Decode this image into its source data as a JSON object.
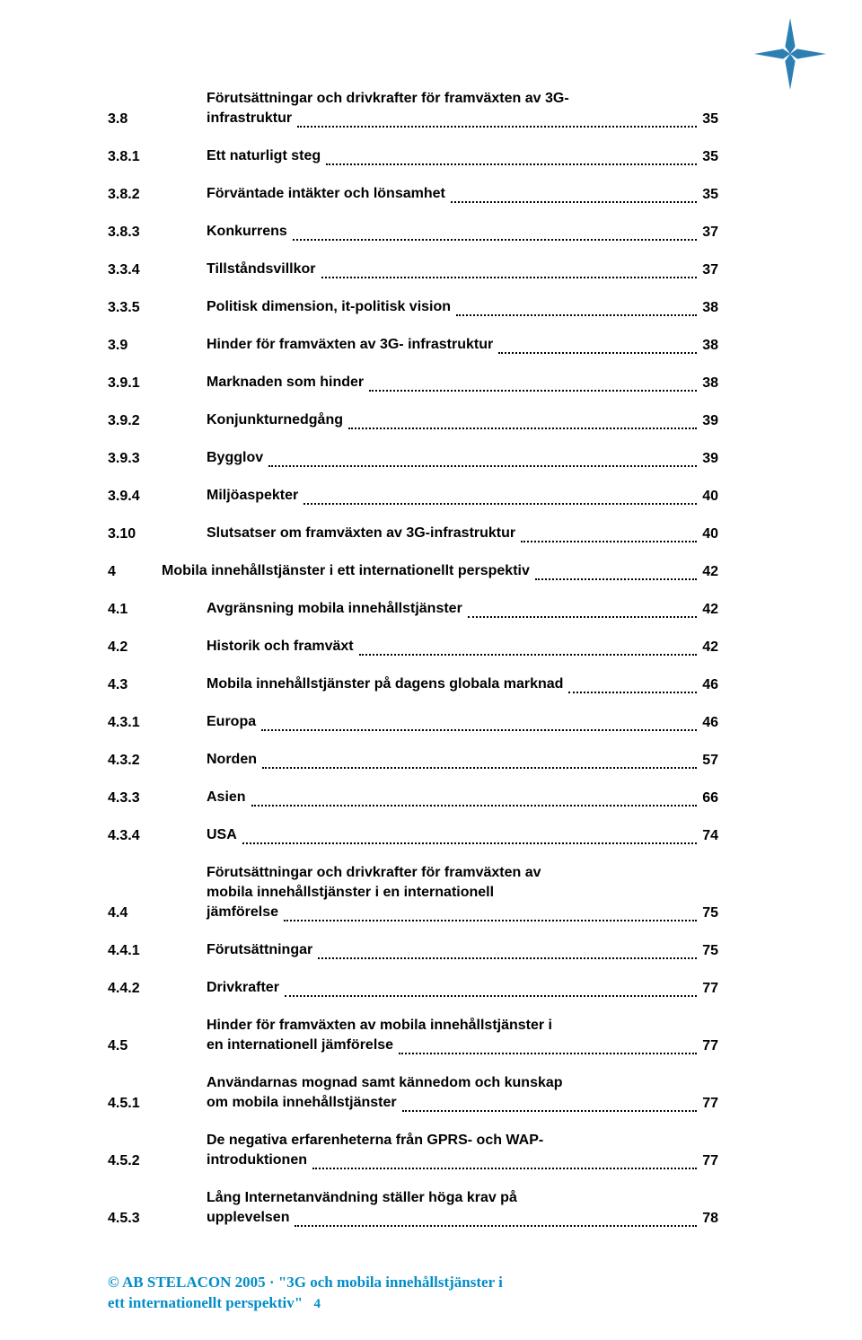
{
  "logo": {
    "color": "#2b7fb3"
  },
  "toc": [
    {
      "num": "3.8",
      "titleLines": [
        "Förutsättningar och drivkrafter för framväxten av 3G-",
        "infrastruktur"
      ],
      "page": "35"
    },
    {
      "num": "3.8.1",
      "titleLines": [
        "Ett naturligt steg"
      ],
      "page": "35"
    },
    {
      "num": "3.8.2",
      "titleLines": [
        "Förväntade intäkter och lönsamhet"
      ],
      "page": "35"
    },
    {
      "num": "3.8.3",
      "titleLines": [
        "Konkurrens"
      ],
      "page": "37"
    },
    {
      "num": "3.3.4",
      "titleLines": [
        "Tillståndsvillkor"
      ],
      "page": "37"
    },
    {
      "num": "3.3.5",
      "titleLines": [
        "Politisk dimension, it-politisk vision"
      ],
      "page": "38"
    },
    {
      "num": "3.9",
      "titleLines": [
        "Hinder för framväxten av 3G- infrastruktur"
      ],
      "page": "38"
    },
    {
      "num": "3.9.1",
      "titleLines": [
        "Marknaden som hinder"
      ],
      "page": "38"
    },
    {
      "num": "3.9.2",
      "titleLines": [
        "Konjunkturnedgång"
      ],
      "page": "39"
    },
    {
      "num": "3.9.3",
      "titleLines": [
        "Bygglov"
      ],
      "page": "39"
    },
    {
      "num": "3.9.4",
      "titleLines": [
        "Miljöaspekter"
      ],
      "page": "40"
    },
    {
      "num": "3.10",
      "titleLines": [
        "Slutsatser om framväxten av 3G-infrastruktur"
      ],
      "page": "40"
    },
    {
      "num": "4",
      "titleLines": [
        "Mobila innehållstjänster i ett internationellt perspektiv"
      ],
      "page": "42",
      "chapter": true
    },
    {
      "num": "4.1",
      "titleLines": [
        "Avgränsning mobila innehållstjänster"
      ],
      "page": "42"
    },
    {
      "num": "4.2",
      "titleLines": [
        "Historik och framväxt"
      ],
      "page": "42"
    },
    {
      "num": "4.3",
      "titleLines": [
        "Mobila innehållstjänster på dagens globala marknad"
      ],
      "page": "46"
    },
    {
      "num": "4.3.1",
      "titleLines": [
        "Europa"
      ],
      "page": "46"
    },
    {
      "num": "4.3.2",
      "titleLines": [
        "Norden"
      ],
      "page": "57"
    },
    {
      "num": "4.3.3",
      "titleLines": [
        "Asien"
      ],
      "page": "66"
    },
    {
      "num": "4.3.4",
      "titleLines": [
        "USA"
      ],
      "page": "74"
    },
    {
      "num": "4.4",
      "titleLines": [
        "Förutsättningar och drivkrafter för framväxten av",
        "mobila innehållstjänster i en internationell",
        "jämförelse"
      ],
      "page": "75"
    },
    {
      "num": "4.4.1",
      "titleLines": [
        "Förutsättningar"
      ],
      "page": "75"
    },
    {
      "num": "4.4.2",
      "titleLines": [
        "Drivkrafter"
      ],
      "page": "77"
    },
    {
      "num": "4.5",
      "titleLines": [
        "Hinder för framväxten av mobila innehållstjänster i",
        "en internationell jämförelse"
      ],
      "page": "77"
    },
    {
      "num": "4.5.1",
      "titleLines": [
        "Användarnas mognad samt kännedom och kunskap",
        "om mobila innehållstjänster"
      ],
      "page": "77"
    },
    {
      "num": "4.5.2",
      "titleLines": [
        "De negativa erfarenheterna från GPRS- och WAP-",
        "introduktionen"
      ],
      "page": "77"
    },
    {
      "num": "4.5.3",
      "titleLines": [
        "Lång Internetanvändning ställer höga krav på",
        "upplevelsen"
      ],
      "page": "78"
    }
  ],
  "footer": {
    "line1": "© AB STELACON 2005 · \"3G och mobila innehållstjänster i",
    "line2": "ett internationellt perspektiv\"",
    "page": "4",
    "color": "#028dc7"
  }
}
